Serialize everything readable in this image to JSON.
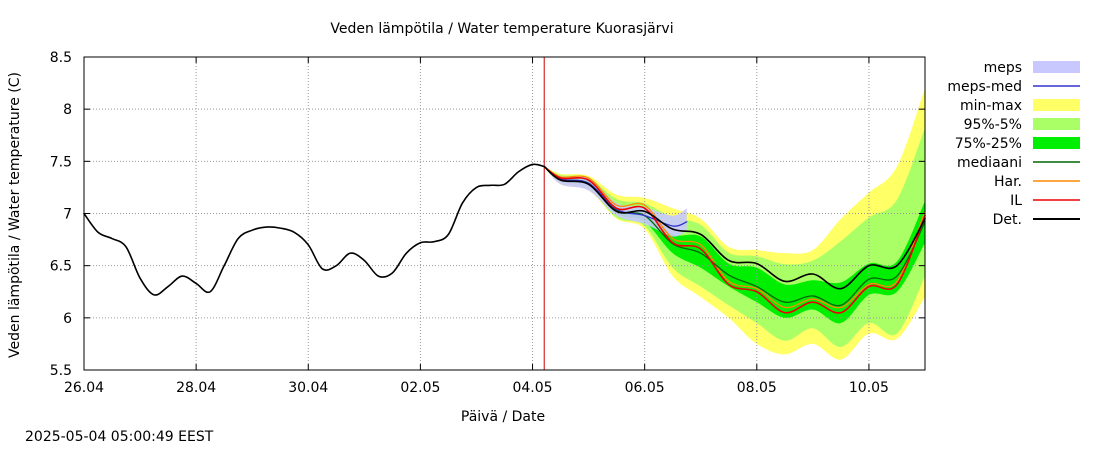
{
  "chart_data": {
    "type": "line",
    "title": "Veden lämpötila / Water temperature Kuorasjärvi",
    "xlabel": "Päivä / Date",
    "ylabel": "Veden lämpötila / Water temperature (C)",
    "xlim": [
      "2025-04-26",
      "2025-05-11"
    ],
    "ylim": [
      5.5,
      8.5
    ],
    "x_ticks": [
      "26.04",
      "28.04",
      "30.04",
      "02.05",
      "04.05",
      "06.05",
      "08.05",
      "10.05"
    ],
    "y_ticks": [
      "5.5",
      "6",
      "6.5",
      "7",
      "7.5",
      "8",
      "8.5"
    ],
    "grid": true,
    "legend_position": "right",
    "forecast_start": "2025-05-04 05:00",
    "observed": {
      "x": [
        "2025-04-26 00:00",
        "2025-04-26 06:00",
        "2025-04-26 12:00",
        "2025-04-26 18:00",
        "2025-04-27 00:00",
        "2025-04-27 06:00",
        "2025-04-27 12:00",
        "2025-04-27 18:00",
        "2025-04-28 00:00",
        "2025-04-28 06:00",
        "2025-04-28 12:00",
        "2025-04-28 18:00",
        "2025-04-29 00:00",
        "2025-04-29 06:00",
        "2025-04-29 12:00",
        "2025-04-29 18:00",
        "2025-04-30 00:00",
        "2025-04-30 06:00",
        "2025-04-30 12:00",
        "2025-04-30 18:00",
        "2025-05-01 00:00",
        "2025-05-01 06:00",
        "2025-05-01 12:00",
        "2025-05-01 18:00",
        "2025-05-02 00:00",
        "2025-05-02 06:00",
        "2025-05-02 12:00",
        "2025-05-02 18:00",
        "2025-05-03 00:00",
        "2025-05-03 06:00",
        "2025-05-03 12:00",
        "2025-05-03 18:00",
        "2025-05-04 00:00",
        "2025-05-04 05:00"
      ],
      "y": [
        7.0,
        6.82,
        6.76,
        6.68,
        6.38,
        6.22,
        6.3,
        6.4,
        6.33,
        6.25,
        6.5,
        6.76,
        6.84,
        6.87,
        6.86,
        6.82,
        6.7,
        6.47,
        6.5,
        6.62,
        6.55,
        6.4,
        6.43,
        6.62,
        6.72,
        6.73,
        6.8,
        7.1,
        7.25,
        7.27,
        7.28,
        7.4,
        7.47,
        7.45
      ]
    },
    "forecast_x": [
      "2025-05-04 05:00",
      "2025-05-04 12:00",
      "2025-05-05 00:00",
      "2025-05-05 12:00",
      "2025-05-06 00:00",
      "2025-05-06 12:00",
      "2025-05-07 00:00",
      "2025-05-07 12:00",
      "2025-05-08 00:00",
      "2025-05-08 12:00",
      "2025-05-09 00:00",
      "2025-05-09 12:00",
      "2025-05-10 00:00",
      "2025-05-10 12:00",
      "2025-05-11 00:00"
    ],
    "series": [
      {
        "name": "min-max",
        "kind": "band",
        "color": "#ffff66",
        "lower": [
          7.45,
          7.28,
          7.22,
          6.95,
          6.85,
          6.4,
          6.2,
          6.0,
          5.75,
          5.65,
          5.75,
          5.6,
          5.85,
          5.8,
          6.2
        ],
        "upper": [
          7.45,
          7.38,
          7.36,
          7.18,
          7.15,
          7.05,
          6.95,
          6.68,
          6.65,
          6.62,
          6.65,
          6.95,
          7.2,
          7.45,
          8.2
        ]
      },
      {
        "name": "95%-5%",
        "kind": "band",
        "color": "#aaff66",
        "lower": [
          7.45,
          7.3,
          7.24,
          6.96,
          6.88,
          6.48,
          6.3,
          6.12,
          5.95,
          5.78,
          5.9,
          5.72,
          5.95,
          5.85,
          6.4
        ]
      },
      {
        "name": "75%-25%",
        "kind": "band",
        "color": "#00ee00",
        "lower": [
          7.45,
          7.32,
          7.27,
          7.0,
          6.92,
          6.62,
          6.48,
          6.3,
          6.15,
          6.0,
          6.08,
          5.95,
          6.22,
          6.25,
          6.72
        ],
        "upper": [
          7.45,
          7.35,
          7.31,
          7.06,
          7.0,
          6.8,
          6.78,
          6.52,
          6.48,
          6.32,
          6.36,
          6.34,
          6.52,
          6.54,
          7.12
        ]
      },
      {
        "name": "meps",
        "kind": "band",
        "color": "#c8c8ff",
        "x": [
          "2025-05-04 05:00",
          "2025-05-04 12:00",
          "2025-05-05 00:00",
          "2025-05-05 12:00",
          "2025-05-06 00:00",
          "2025-05-06 12:00",
          "2025-05-06 18:00"
        ],
        "lower": [
          7.45,
          7.28,
          7.22,
          6.98,
          6.9,
          6.78,
          6.84
        ],
        "upper": [
          7.45,
          7.36,
          7.34,
          7.1,
          7.06,
          6.98,
          7.05
        ]
      },
      {
        "name": "meps-med",
        "kind": "line",
        "color": "#3333cc",
        "x": [
          "2025-05-04 05:00",
          "2025-05-04 12:00",
          "2025-05-05 00:00",
          "2025-05-05 12:00",
          "2025-05-06 00:00",
          "2025-05-06 12:00",
          "2025-05-06 18:00"
        ],
        "values": [
          7.45,
          7.33,
          7.29,
          7.04,
          6.98,
          6.88,
          6.92
        ]
      },
      {
        "name": "Har.",
        "kind": "line",
        "color": "#ff8800",
        "values": [
          7.45,
          7.35,
          7.34,
          7.08,
          7.08,
          6.76,
          6.7,
          6.35,
          6.28,
          6.1,
          6.18,
          6.1,
          6.32,
          6.35,
          7.02
        ]
      },
      {
        "name": "mediaani",
        "kind": "line",
        "color": "#006600",
        "values": [
          7.45,
          7.33,
          7.29,
          7.03,
          6.98,
          6.71,
          6.62,
          6.41,
          6.3,
          6.15,
          6.21,
          6.12,
          6.37,
          6.4,
          6.92
        ]
      },
      {
        "name": "IL",
        "kind": "line",
        "color": "#ee0000",
        "values": [
          7.45,
          7.34,
          7.32,
          7.05,
          7.05,
          6.72,
          6.66,
          6.32,
          6.25,
          6.05,
          6.15,
          6.05,
          6.3,
          6.32,
          6.98
        ]
      },
      {
        "name": "Det.",
        "kind": "line",
        "color": "#000000",
        "values": [
          7.45,
          7.32,
          7.28,
          7.02,
          7.02,
          6.85,
          6.8,
          6.55,
          6.52,
          6.35,
          6.42,
          6.28,
          6.5,
          6.5,
          6.95
        ]
      }
    ]
  },
  "timestamp": "2025-05-04 05:00:49 EEST"
}
